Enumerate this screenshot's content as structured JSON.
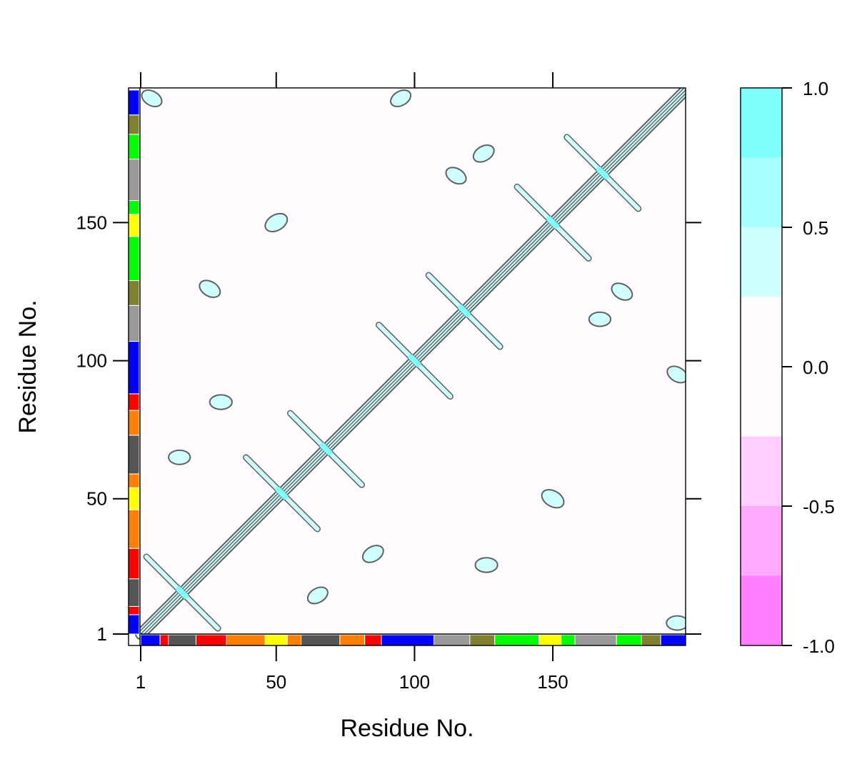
{
  "chart_data": {
    "type": "heatmap",
    "title": "",
    "xlabel": "Residue No.",
    "ylabel": "Residue No.",
    "xlim": [
      1,
      198
    ],
    "ylim": [
      1,
      198
    ],
    "x_ticks": [
      {
        "value": 1,
        "label": "1"
      },
      {
        "value": 50,
        "label": "50"
      },
      {
        "value": 100,
        "label": "100"
      },
      {
        "value": 150,
        "label": "150"
      }
    ],
    "y_ticks": [
      {
        "value": 1,
        "label": "1"
      },
      {
        "value": 50,
        "label": "50"
      },
      {
        "value": 100,
        "label": "100"
      },
      {
        "value": 150,
        "label": "150"
      }
    ],
    "colorbar": {
      "range": [
        -1.0,
        1.0
      ],
      "tick_labels": [
        "1.0",
        "0.5",
        "0.0",
        "-0.5",
        "-1.0"
      ],
      "tick_values": [
        1.0,
        0.5,
        0.0,
        -0.5,
        -1.0
      ],
      "levels": [
        {
          "from": -1.0,
          "to": -0.75,
          "color": "#ff80ff"
        },
        {
          "from": -0.75,
          "to": -0.5,
          "color": "#ffa8ff"
        },
        {
          "from": -0.5,
          "to": -0.25,
          "color": "#ffd0ff"
        },
        {
          "from": -0.25,
          "to": 0.25,
          "color": "#fffbff"
        },
        {
          "from": 0.25,
          "to": 0.5,
          "color": "#d0ffff"
        },
        {
          "from": 0.5,
          "to": 0.75,
          "color": "#a8ffff"
        },
        {
          "from": 0.75,
          "to": 1.0,
          "color": "#80ffff"
        }
      ]
    },
    "background_level_color": "#fffbff",
    "contour_fill_color": "#d0ffff",
    "contour_line_color": "#606060",
    "segment_colors": [
      "#0000ff",
      "#ff0000",
      "#555555",
      "#ff0000",
      "#ff8000",
      "#ffff00",
      "#ff8000",
      "#555555",
      "#ff8000",
      "#ff0000",
      "#0000ff",
      "#999999",
      "#808030",
      "#00ff00",
      "#ffff00",
      "#00ff00",
      "#999999",
      "#00ff00",
      "#808030",
      "#0000ff"
    ],
    "segments": [
      {
        "start": 1,
        "end": 8,
        "color": "#0000ff"
      },
      {
        "start": 8,
        "end": 11,
        "color": "#ff0000"
      },
      {
        "start": 11,
        "end": 21,
        "color": "#555555"
      },
      {
        "start": 21,
        "end": 32,
        "color": "#ff0000"
      },
      {
        "start": 32,
        "end": 46,
        "color": "#ff8000"
      },
      {
        "start": 46,
        "end": 54,
        "color": "#ffff00"
      },
      {
        "start": 54,
        "end": 59,
        "color": "#ff8000"
      },
      {
        "start": 59,
        "end": 73,
        "color": "#555555"
      },
      {
        "start": 73,
        "end": 82,
        "color": "#ff8000"
      },
      {
        "start": 82,
        "end": 88,
        "color": "#ff0000"
      },
      {
        "start": 88,
        "end": 107,
        "color": "#0000ff"
      },
      {
        "start": 107,
        "end": 120,
        "color": "#999999"
      },
      {
        "start": 120,
        "end": 129,
        "color": "#808030"
      },
      {
        "start": 129,
        "end": 145,
        "color": "#00ff00"
      },
      {
        "start": 145,
        "end": 153,
        "color": "#ffff00"
      },
      {
        "start": 153,
        "end": 158,
        "color": "#00ff00"
      },
      {
        "start": 158,
        "end": 173,
        "color": "#999999"
      },
      {
        "start": 173,
        "end": 182,
        "color": "#00ff00"
      },
      {
        "start": 182,
        "end": 189,
        "color": "#808030"
      },
      {
        "start": 189,
        "end": 198,
        "color": "#0000ff"
      }
    ],
    "correlation_features": [
      {
        "kind": "diagonal-band",
        "from": 1,
        "to": 198,
        "value": 1.0
      },
      {
        "kind": "cross",
        "x": 16,
        "y": 16,
        "value": 0.5
      },
      {
        "kind": "cross",
        "x": 52,
        "y": 52,
        "value": 0.55
      },
      {
        "kind": "cross",
        "x": 68,
        "y": 68,
        "value": 0.5
      },
      {
        "kind": "cross",
        "x": 100,
        "y": 100,
        "value": 0.5
      },
      {
        "kind": "cross",
        "x": 118,
        "y": 118,
        "value": 0.5
      },
      {
        "kind": "cross",
        "x": 150,
        "y": 150,
        "value": 0.55
      },
      {
        "kind": "cross",
        "x": 168,
        "y": 168,
        "value": 0.5
      },
      {
        "kind": "blob",
        "x": 150,
        "y": 50,
        "value": 0.35
      },
      {
        "kind": "blob",
        "x": 50,
        "y": 150,
        "value": 0.35
      },
      {
        "kind": "blob",
        "x": 126,
        "y": 26,
        "value": 0.3
      },
      {
        "kind": "blob",
        "x": 26,
        "y": 126,
        "value": 0.3
      },
      {
        "kind": "blob",
        "x": 85,
        "y": 30,
        "value": 0.3
      },
      {
        "kind": "blob",
        "x": 30,
        "y": 85,
        "value": 0.3
      },
      {
        "kind": "blob",
        "x": 175,
        "y": 125,
        "value": 0.3
      },
      {
        "kind": "blob",
        "x": 125,
        "y": 175,
        "value": 0.3
      },
      {
        "kind": "blob",
        "x": 167,
        "y": 115,
        "value": 0.28
      },
      {
        "kind": "blob",
        "x": 115,
        "y": 167,
        "value": 0.28
      },
      {
        "kind": "blob",
        "x": 65,
        "y": 15,
        "value": 0.28
      },
      {
        "kind": "blob",
        "x": 15,
        "y": 65,
        "value": 0.28
      },
      {
        "kind": "blob",
        "x": 195,
        "y": 95,
        "value": 0.28
      },
      {
        "kind": "blob",
        "x": 95,
        "y": 195,
        "value": 0.28
      },
      {
        "kind": "blob",
        "x": 195,
        "y": 5,
        "value": 0.28
      },
      {
        "kind": "blob",
        "x": 5,
        "y": 195,
        "value": 0.28
      }
    ]
  }
}
